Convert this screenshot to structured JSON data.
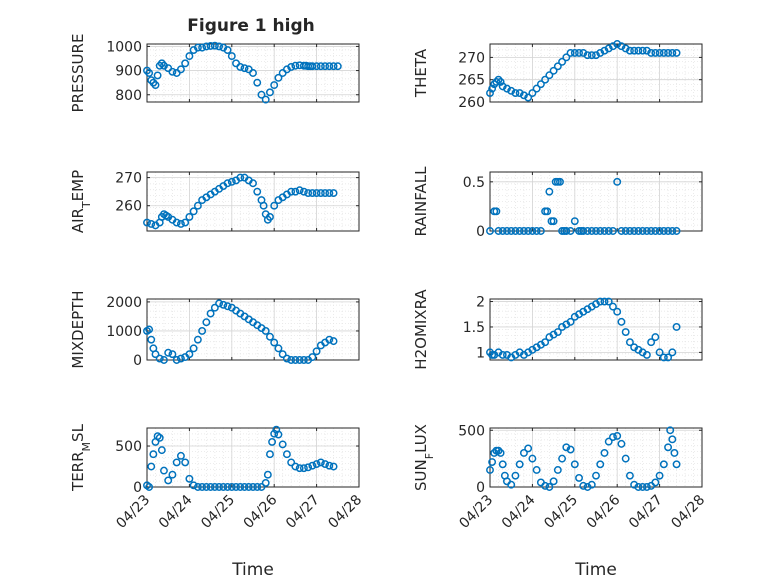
{
  "figure_title": "Figure 1 high",
  "marker_color": "#0072BD",
  "chart_data": [
    {
      "type": "scatter",
      "ylabel": "PRESSURE",
      "xlabel": "",
      "xlim": [
        0,
        5
      ],
      "ylim": [
        770,
        1010
      ],
      "yticks": [
        800,
        900,
        1000
      ],
      "xticks": [
        0,
        1,
        2,
        3,
        4,
        5
      ],
      "xticklabels": [],
      "grid": true,
      "x": [
        0.0,
        0.05,
        0.1,
        0.15,
        0.2,
        0.25,
        0.3,
        0.35,
        0.4,
        0.5,
        0.6,
        0.7,
        0.8,
        0.9,
        1.0,
        1.1,
        1.2,
        1.3,
        1.4,
        1.5,
        1.6,
        1.7,
        1.8,
        1.9,
        2.0,
        2.1,
        2.2,
        2.3,
        2.4,
        2.5,
        2.6,
        2.7,
        2.8,
        2.9,
        3.0,
        3.1,
        3.2,
        3.3,
        3.4,
        3.5,
        3.6,
        3.7,
        3.75,
        3.8,
        3.85,
        3.9,
        4.0,
        4.1,
        4.2,
        4.3,
        4.4,
        4.5
      ],
      "y": [
        900,
        890,
        860,
        850,
        840,
        880,
        920,
        930,
        920,
        910,
        895,
        890,
        905,
        930,
        960,
        985,
        995,
        995,
        1000,
        1002,
        1003,
        1000,
        995,
        985,
        960,
        930,
        915,
        910,
        905,
        890,
        850,
        800,
        780,
        810,
        840,
        870,
        890,
        905,
        915,
        920,
        922,
        920,
        920,
        918,
        918,
        918,
        918,
        918,
        918,
        918,
        918,
        918
      ]
    },
    {
      "type": "scatter",
      "ylabel": "THETA",
      "xlabel": "",
      "xlim": [
        0,
        5
      ],
      "ylim": [
        260,
        273
      ],
      "yticks": [
        260,
        265,
        270
      ],
      "xticks": [
        0,
        1,
        2,
        3,
        4,
        5
      ],
      "xticklabels": [],
      "grid": true,
      "x": [
        0.0,
        0.05,
        0.1,
        0.15,
        0.2,
        0.25,
        0.3,
        0.4,
        0.5,
        0.6,
        0.7,
        0.8,
        0.9,
        1.0,
        1.1,
        1.2,
        1.3,
        1.4,
        1.5,
        1.6,
        1.7,
        1.8,
        1.9,
        2.0,
        2.1,
        2.2,
        2.3,
        2.4,
        2.5,
        2.6,
        2.7,
        2.8,
        2.9,
        3.0,
        3.1,
        3.2,
        3.3,
        3.4,
        3.5,
        3.6,
        3.7,
        3.8,
        3.9,
        4.0,
        4.1,
        4.2,
        4.3,
        4.4
      ],
      "y": [
        262,
        263,
        264,
        264.5,
        265,
        264.5,
        263.5,
        263,
        262.5,
        262,
        262,
        261.5,
        261,
        262,
        263,
        264,
        265,
        266,
        267,
        268,
        269,
        270,
        271,
        271,
        271,
        271,
        270.5,
        270.5,
        270.5,
        271,
        271.5,
        272,
        272.5,
        273,
        272.5,
        272,
        271.5,
        271.5,
        271.5,
        271.5,
        271.5,
        271,
        271,
        271,
        271,
        271,
        271,
        271
      ]
    },
    {
      "type": "scatter",
      "ylabel": "AIR_TEMP",
      "xlabel": "",
      "xlim": [
        0,
        5
      ],
      "ylim": [
        251,
        272
      ],
      "yticks": [
        260,
        270
      ],
      "xticks": [
        0,
        1,
        2,
        3,
        4,
        5
      ],
      "xticklabels": [],
      "grid": true,
      "x": [
        0.0,
        0.1,
        0.2,
        0.3,
        0.35,
        0.4,
        0.45,
        0.5,
        0.6,
        0.7,
        0.8,
        0.9,
        1.0,
        1.1,
        1.2,
        1.3,
        1.4,
        1.5,
        1.6,
        1.7,
        1.8,
        1.9,
        2.0,
        2.1,
        2.2,
        2.3,
        2.4,
        2.5,
        2.6,
        2.7,
        2.75,
        2.8,
        2.85,
        2.9,
        3.0,
        3.1,
        3.2,
        3.3,
        3.4,
        3.5,
        3.6,
        3.7,
        3.8,
        3.9,
        4.0,
        4.1,
        4.2,
        4.3,
        4.4
      ],
      "y": [
        254,
        253.5,
        253,
        254,
        256,
        257,
        256.5,
        256,
        255,
        254,
        253.5,
        254,
        256,
        258,
        260,
        262,
        263,
        264,
        265,
        266,
        267,
        268,
        268.5,
        269,
        270,
        270,
        269,
        268,
        265,
        262,
        260,
        257,
        255,
        256,
        260,
        262,
        263,
        264,
        265,
        265,
        265.5,
        265,
        264.5,
        264.5,
        264.5,
        264.5,
        264.5,
        264.5,
        264.5
      ]
    },
    {
      "type": "scatter",
      "ylabel": "RAINFALL",
      "xlabel": "",
      "xlim": [
        0,
        5
      ],
      "ylim": [
        0,
        0.6
      ],
      "yticks": [
        0,
        0.5
      ],
      "xticks": [
        0,
        1,
        2,
        3,
        4,
        5
      ],
      "xticklabels": [],
      "grid": true,
      "x": [
        0.0,
        0.1,
        0.15,
        0.2,
        0.3,
        0.4,
        0.5,
        0.6,
        0.7,
        0.8,
        0.9,
        1.0,
        1.1,
        1.2,
        1.3,
        1.35,
        1.4,
        1.45,
        1.5,
        1.55,
        1.6,
        1.65,
        1.7,
        1.75,
        1.8,
        1.9,
        2.0,
        2.1,
        2.15,
        2.2,
        2.3,
        2.4,
        2.5,
        2.6,
        2.7,
        2.8,
        2.9,
        3.0,
        3.1,
        3.2,
        3.3,
        3.4,
        3.5,
        3.6,
        3.7,
        3.8,
        3.9,
        4.0,
        4.1,
        4.2,
        4.3,
        4.4
      ],
      "y": [
        0.0,
        0.2,
        0.2,
        0.0,
        0.0,
        0.0,
        0.0,
        0.0,
        0.0,
        0.0,
        0.0,
        0.0,
        0.0,
        0.0,
        0.2,
        0.2,
        0.4,
        0.1,
        0.1,
        0.5,
        0.5,
        0.5,
        0.0,
        0.0,
        0.0,
        0.0,
        0.1,
        0.0,
        0.0,
        0.0,
        0.0,
        0.0,
        0.0,
        0.0,
        0.0,
        0.0,
        0.0,
        0.5,
        0.0,
        0.0,
        0.0,
        0.0,
        0.0,
        0.0,
        0.0,
        0.0,
        0.0,
        0.0,
        0.0,
        0.0,
        0.0,
        0.0
      ]
    },
    {
      "type": "scatter",
      "ylabel": "MIXDEPTH",
      "xlabel": "",
      "xlim": [
        0,
        5
      ],
      "ylim": [
        0,
        2100
      ],
      "yticks": [
        0,
        1000,
        2000
      ],
      "xticks": [
        0,
        1,
        2,
        3,
        4,
        5
      ],
      "xticklabels": [],
      "grid": true,
      "x": [
        0.0,
        0.05,
        0.1,
        0.15,
        0.2,
        0.3,
        0.4,
        0.5,
        0.6,
        0.7,
        0.8,
        0.9,
        1.0,
        1.1,
        1.2,
        1.3,
        1.4,
        1.5,
        1.6,
        1.7,
        1.8,
        1.9,
        2.0,
        2.1,
        2.2,
        2.3,
        2.4,
        2.5,
        2.6,
        2.7,
        2.8,
        2.9,
        3.0,
        3.1,
        3.2,
        3.3,
        3.4,
        3.5,
        3.6,
        3.7,
        3.8,
        3.9,
        4.0,
        4.1,
        4.2,
        4.3,
        4.4
      ],
      "y": [
        1000,
        1050,
        700,
        400,
        200,
        50,
        0,
        250,
        200,
        0,
        50,
        100,
        200,
        400,
        700,
        1000,
        1300,
        1600,
        1800,
        1950,
        1900,
        1850,
        1800,
        1700,
        1600,
        1500,
        1400,
        1300,
        1200,
        1100,
        1000,
        800,
        600,
        400,
        200,
        50,
        0,
        0,
        0,
        0,
        0,
        100,
        300,
        500,
        600,
        700,
        650
      ]
    },
    {
      "type": "scatter",
      "ylabel": "H2OMIXRA",
      "xlabel": "",
      "xlim": [
        0,
        5
      ],
      "ylim": [
        0.85,
        2.05
      ],
      "yticks": [
        1,
        1.5,
        2
      ],
      "xticks": [
        0,
        1,
        2,
        3,
        4,
        5
      ],
      "xticklabels": [],
      "grid": true,
      "x": [
        0.0,
        0.05,
        0.1,
        0.2,
        0.3,
        0.4,
        0.5,
        0.6,
        0.7,
        0.8,
        0.9,
        1.0,
        1.1,
        1.2,
        1.3,
        1.4,
        1.5,
        1.6,
        1.7,
        1.8,
        1.9,
        2.0,
        2.1,
        2.2,
        2.3,
        2.4,
        2.5,
        2.6,
        2.7,
        2.8,
        2.9,
        3.0,
        3.1,
        3.2,
        3.3,
        3.4,
        3.5,
        3.6,
        3.7,
        3.8,
        3.9,
        4.0,
        4.1,
        4.2,
        4.3,
        4.4
      ],
      "y": [
        1.0,
        0.95,
        0.95,
        1.0,
        0.95,
        0.95,
        0.9,
        0.95,
        1.0,
        0.95,
        1.0,
        1.05,
        1.1,
        1.15,
        1.2,
        1.3,
        1.35,
        1.4,
        1.5,
        1.55,
        1.6,
        1.7,
        1.75,
        1.8,
        1.85,
        1.9,
        1.95,
        2.0,
        2.0,
        2.0,
        1.9,
        1.8,
        1.6,
        1.4,
        1.2,
        1.1,
        1.05,
        1.0,
        0.95,
        1.2,
        1.3,
        1.0,
        0.9,
        0.9,
        1.0,
        1.5
      ]
    },
    {
      "type": "scatter",
      "ylabel": "TERR_MSL",
      "xlabel": "Time",
      "xlim": [
        0,
        5
      ],
      "ylim": [
        0,
        720
      ],
      "yticks": [
        0,
        500
      ],
      "xticks": [
        0,
        1,
        2,
        3,
        4,
        5
      ],
      "xticklabels": [
        "04/23",
        "04/24",
        "04/25",
        "04/26",
        "04/27",
        "04/28"
      ],
      "grid": true,
      "x": [
        0.0,
        0.05,
        0.1,
        0.15,
        0.2,
        0.25,
        0.3,
        0.35,
        0.4,
        0.5,
        0.6,
        0.7,
        0.8,
        0.9,
        1.0,
        1.1,
        1.2,
        1.3,
        1.4,
        1.5,
        1.6,
        1.7,
        1.8,
        1.9,
        2.0,
        2.1,
        2.2,
        2.3,
        2.4,
        2.5,
        2.6,
        2.7,
        2.8,
        2.85,
        2.9,
        2.95,
        3.0,
        3.05,
        3.1,
        3.2,
        3.3,
        3.4,
        3.5,
        3.6,
        3.7,
        3.8,
        3.9,
        4.0,
        4.1,
        4.2,
        4.3,
        4.4
      ],
      "y": [
        20,
        0,
        250,
        400,
        550,
        620,
        600,
        450,
        200,
        80,
        150,
        300,
        380,
        300,
        100,
        20,
        0,
        0,
        0,
        0,
        0,
        0,
        0,
        0,
        0,
        0,
        0,
        0,
        0,
        0,
        0,
        0,
        50,
        150,
        400,
        550,
        650,
        700,
        640,
        520,
        400,
        300,
        250,
        230,
        230,
        240,
        260,
        280,
        300,
        280,
        260,
        250
      ]
    },
    {
      "type": "scatter",
      "ylabel": "SUN_FLUX",
      "xlabel": "Time",
      "xlim": [
        0,
        5
      ],
      "ylim": [
        0,
        520
      ],
      "yticks": [
        0,
        500
      ],
      "xticks": [
        0,
        1,
        2,
        3,
        4,
        5
      ],
      "xticklabels": [
        "04/23",
        "04/24",
        "04/25",
        "04/26",
        "04/27",
        "04/28"
      ],
      "grid": true,
      "x": [
        0.0,
        0.05,
        0.1,
        0.15,
        0.2,
        0.25,
        0.3,
        0.35,
        0.4,
        0.5,
        0.6,
        0.7,
        0.8,
        0.9,
        1.0,
        1.1,
        1.2,
        1.3,
        1.4,
        1.5,
        1.6,
        1.7,
        1.8,
        1.9,
        2.0,
        2.1,
        2.2,
        2.3,
        2.4,
        2.5,
        2.6,
        2.7,
        2.8,
        2.9,
        3.0,
        3.1,
        3.2,
        3.3,
        3.4,
        3.5,
        3.6,
        3.7,
        3.8,
        3.9,
        4.0,
        4.1,
        4.2,
        4.25,
        4.3,
        4.35,
        4.4
      ],
      "y": [
        150,
        220,
        300,
        320,
        320,
        300,
        200,
        100,
        50,
        20,
        100,
        200,
        300,
        340,
        250,
        150,
        40,
        10,
        0,
        50,
        150,
        250,
        350,
        330,
        200,
        80,
        10,
        0,
        20,
        100,
        200,
        300,
        400,
        440,
        450,
        380,
        250,
        100,
        20,
        0,
        0,
        0,
        10,
        40,
        100,
        200,
        350,
        500,
        420,
        300,
        200
      ]
    }
  ]
}
